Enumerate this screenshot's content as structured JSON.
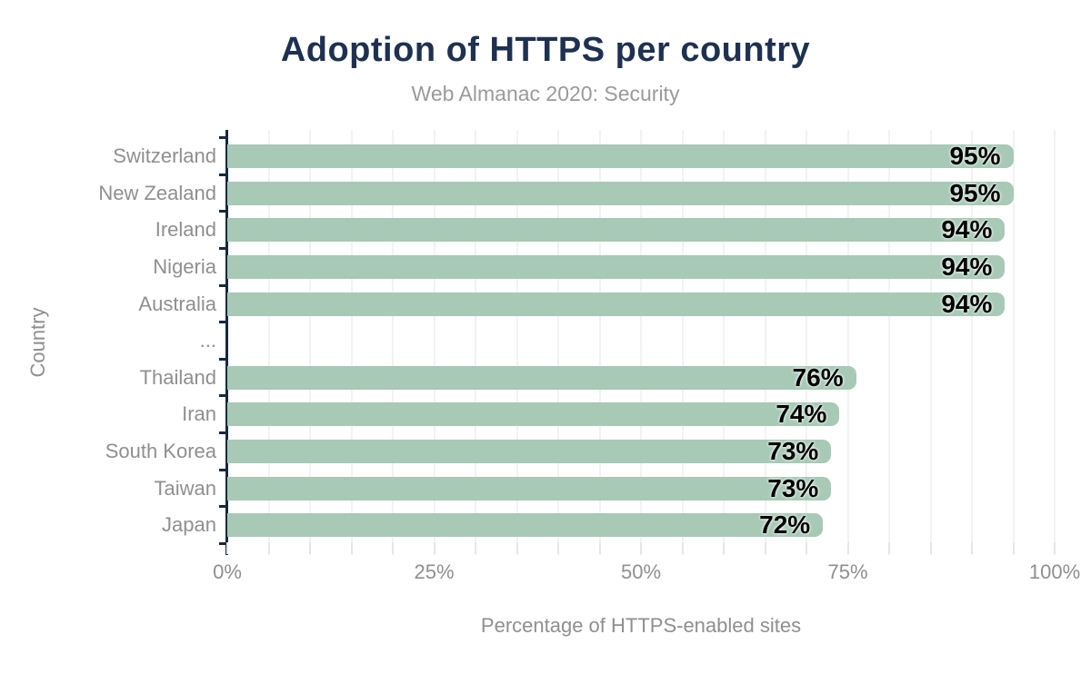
{
  "chart_data": {
    "type": "bar",
    "orientation": "horizontal",
    "title": "Adoption of HTTPS per country",
    "subtitle": "Web Almanac 2020: Security",
    "xlabel": "Percentage of HTTPS-enabled sites",
    "ylabel": "Country",
    "categories": [
      "Switzerland",
      "New Zealand",
      "Ireland",
      "Nigeria",
      "Australia",
      "...",
      "Thailand",
      "Iran",
      "South Korea",
      "Taiwan",
      "Japan"
    ],
    "values": [
      95,
      95,
      94,
      94,
      94,
      null,
      76,
      74,
      73,
      73,
      72
    ],
    "value_labels": [
      "95%",
      "95%",
      "94%",
      "94%",
      "94%",
      null,
      "76%",
      "74%",
      "73%",
      "73%",
      "72%"
    ],
    "xlim": [
      0,
      100
    ],
    "xtick_values": [
      0,
      25,
      50,
      75,
      100
    ],
    "xtick_labels": [
      "0%",
      "25%",
      "50%",
      "75%",
      "100%"
    ],
    "grid": {
      "show": true,
      "step_percent": 5,
      "direction": "vertical"
    },
    "legend": "none",
    "colors": {
      "bar": "#a7c9b6",
      "axis": "#16293f",
      "title": "#1e3150",
      "subtitle": "#9a9a9a",
      "category_label": "#8f8f8f",
      "tick_label": "#8f8f8f",
      "value_label": "#000000",
      "gridline": "#f2f2f2",
      "background": "#ffffff"
    }
  }
}
